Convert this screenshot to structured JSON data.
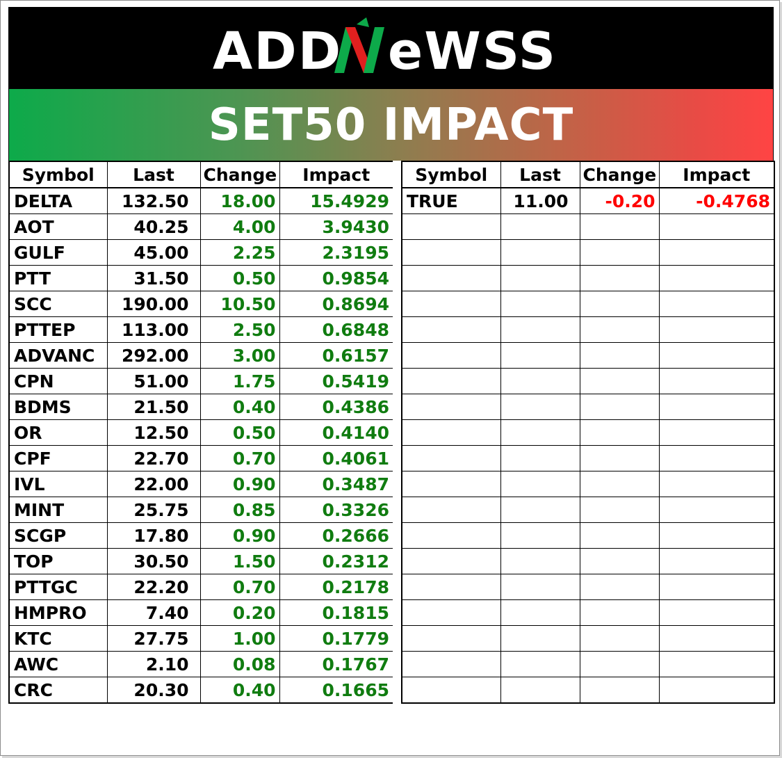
{
  "logo": {
    "text_left": "ADD",
    "text_n": "N",
    "text_right": "eWSS"
  },
  "title": "SET50 IMPACT",
  "colors": {
    "positive": "#107c10",
    "negative": "#ff0000",
    "header_green": "#0daa4a",
    "header_red": "#ff4444"
  },
  "columns": [
    "Symbol",
    "Last",
    "Change",
    "Impact"
  ],
  "gainers": [
    {
      "symbol": "DELTA",
      "last": "132.50",
      "change": "18.00",
      "impact": "15.4929"
    },
    {
      "symbol": "AOT",
      "last": "40.25",
      "change": "4.00",
      "impact": "3.9430"
    },
    {
      "symbol": "GULF",
      "last": "45.00",
      "change": "2.25",
      "impact": "2.3195"
    },
    {
      "symbol": "PTT",
      "last": "31.50",
      "change": "0.50",
      "impact": "0.9854"
    },
    {
      "symbol": "SCC",
      "last": "190.00",
      "change": "10.50",
      "impact": "0.8694"
    },
    {
      "symbol": "PTTEP",
      "last": "113.00",
      "change": "2.50",
      "impact": "0.6848"
    },
    {
      "symbol": "ADVANC",
      "last": "292.00",
      "change": "3.00",
      "impact": "0.6157"
    },
    {
      "symbol": "CPN",
      "last": "51.00",
      "change": "1.75",
      "impact": "0.5419"
    },
    {
      "symbol": "BDMS",
      "last": "21.50",
      "change": "0.40",
      "impact": "0.4386"
    },
    {
      "symbol": "OR",
      "last": "12.50",
      "change": "0.50",
      "impact": "0.4140"
    },
    {
      "symbol": "CPF",
      "last": "22.70",
      "change": "0.70",
      "impact": "0.4061"
    },
    {
      "symbol": "IVL",
      "last": "22.00",
      "change": "0.90",
      "impact": "0.3487"
    },
    {
      "symbol": "MINT",
      "last": "25.75",
      "change": "0.85",
      "impact": "0.3326"
    },
    {
      "symbol": "SCGP",
      "last": "17.80",
      "change": "0.90",
      "impact": "0.2666"
    },
    {
      "symbol": "TOP",
      "last": "30.50",
      "change": "1.50",
      "impact": "0.2312"
    },
    {
      "symbol": "PTTGC",
      "last": "22.20",
      "change": "0.70",
      "impact": "0.2178"
    },
    {
      "symbol": "HMPRO",
      "last": "7.40",
      "change": "0.20",
      "impact": "0.1815"
    },
    {
      "symbol": "KTC",
      "last": "27.75",
      "change": "1.00",
      "impact": "0.1779"
    },
    {
      "symbol": "AWC",
      "last": "2.10",
      "change": "0.08",
      "impact": "0.1767"
    },
    {
      "symbol": "CRC",
      "last": "20.30",
      "change": "0.40",
      "impact": "0.1665"
    }
  ],
  "losers": [
    {
      "symbol": "TRUE",
      "last": "11.00",
      "change": "-0.20",
      "impact": "-0.4768"
    }
  ]
}
